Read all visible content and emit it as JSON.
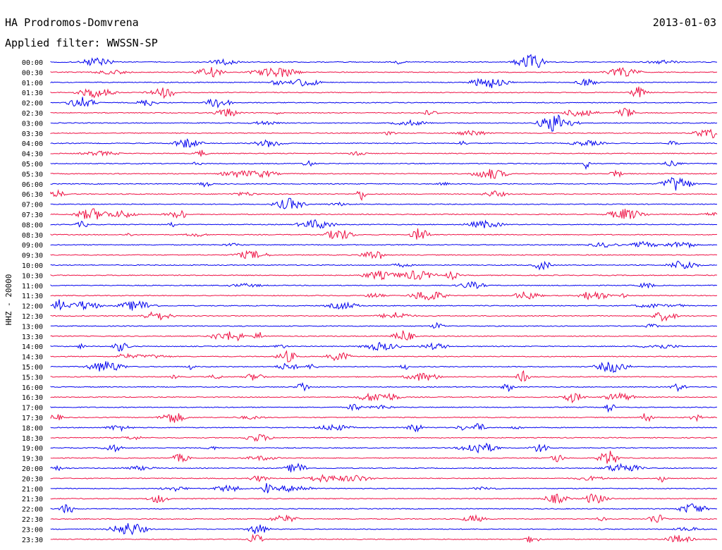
{
  "header": {
    "station": "HA Prodromos-Domvrena",
    "date": "2013-01-03",
    "filter": "Applied filter: WWSSN-SP"
  },
  "chart_data": {
    "type": "helicorder",
    "ylabel": "HHZ - 20000",
    "row_colors": [
      "#0000ee",
      "#ee1144"
    ],
    "rows": [
      {
        "time": "00:00"
      },
      {
        "time": "00:30"
      },
      {
        "time": "01:00"
      },
      {
        "time": "01:30"
      },
      {
        "time": "02:00"
      },
      {
        "time": "02:30"
      },
      {
        "time": "03:00"
      },
      {
        "time": "03:30"
      },
      {
        "time": "04:00"
      },
      {
        "time": "04:30"
      },
      {
        "time": "05:00"
      },
      {
        "time": "05:30"
      },
      {
        "time": "06:00"
      },
      {
        "time": "06:30"
      },
      {
        "time": "07:00"
      },
      {
        "time": "07:30"
      },
      {
        "time": "08:00"
      },
      {
        "time": "08:30"
      },
      {
        "time": "09:00"
      },
      {
        "time": "09:30"
      },
      {
        "time": "10:00"
      },
      {
        "time": "10:30"
      },
      {
        "time": "11:00"
      },
      {
        "time": "11:30"
      },
      {
        "time": "12:00"
      },
      {
        "time": "12:30"
      },
      {
        "time": "13:00"
      },
      {
        "time": "13:30"
      },
      {
        "time": "14:00"
      },
      {
        "time": "14:30"
      },
      {
        "time": "15:00"
      },
      {
        "time": "15:30"
      },
      {
        "time": "16:00"
      },
      {
        "time": "16:30"
      },
      {
        "time": "17:00"
      },
      {
        "time": "17:30"
      },
      {
        "time": "18:00"
      },
      {
        "time": "18:30"
      },
      {
        "time": "19:00"
      },
      {
        "time": "19:30"
      },
      {
        "time": "20:00"
      },
      {
        "time": "20:30"
      },
      {
        "time": "21:00"
      },
      {
        "time": "21:30"
      },
      {
        "time": "22:00"
      },
      {
        "time": "22:30"
      },
      {
        "time": "23:00"
      },
      {
        "time": "23:30"
      }
    ]
  }
}
